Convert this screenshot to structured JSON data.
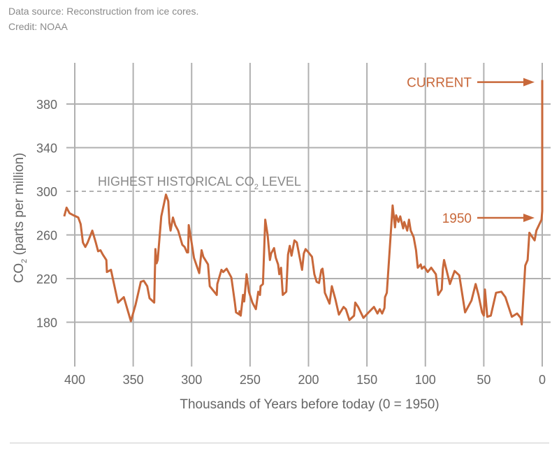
{
  "header": {
    "source": "Data source: Reconstruction from ice cores.",
    "credit": "Credit: NOAA"
  },
  "colors": {
    "line": "#c8683a",
    "grid": "#b0b0b0",
    "text": "#666666",
    "dashed": "#999999"
  },
  "chart_data": {
    "type": "line",
    "title": "",
    "xlabel": "Thousands of Years before today (0 = 1950)",
    "ylabel_main": "CO",
    "ylabel_sub": "2",
    "ylabel_rest": " (parts per million)",
    "xlim": [
      400,
      0
    ],
    "ylim": [
      140,
      418
    ],
    "x_reversed": true,
    "grid": true,
    "xticks": [
      400,
      350,
      300,
      250,
      200,
      150,
      100,
      50,
      0
    ],
    "yticks": [
      180,
      220,
      260,
      300,
      340,
      380
    ],
    "reference_line": {
      "value": 300,
      "label_main": "HIGHEST HISTORICAL CO",
      "label_sub": "2",
      "label_rest": " LEVEL",
      "style": "dashed"
    },
    "annotations": [
      {
        "text": "CURRENT",
        "x": 0,
        "y": 402
      },
      {
        "text": "1950",
        "x": 0,
        "y": 284
      }
    ],
    "series": [
      {
        "x": [
          409,
          407,
          404.5,
          401,
          397,
          395,
          393,
          391,
          389,
          385,
          382,
          380,
          378,
          376,
          373,
          372.5,
          369,
          363,
          358,
          352,
          348,
          343.5,
          341,
          338,
          336,
          332,
          331,
          330,
          329,
          326,
          322,
          320,
          319,
          318,
          316,
          314,
          311.5,
          308,
          306,
          304,
          303,
          302.5,
          300,
          298,
          293.5,
          291.5,
          290,
          286,
          284.5,
          278.5,
          278,
          274.5,
          273,
          270,
          266,
          263,
          262,
          259,
          259,
          258,
          256,
          255,
          253,
          251,
          248,
          245,
          243,
          241.5,
          241,
          239,
          237,
          235,
          233,
          232,
          229.5,
          228,
          226,
          225,
          223.5,
          222,
          219,
          217.5,
          216,
          214.5,
          212,
          210,
          205.5,
          204,
          202.5,
          200,
          197,
          195,
          193,
          191,
          189,
          188,
          187,
          186,
          182,
          180,
          177,
          174,
          170,
          168,
          165,
          161,
          160,
          157.5,
          153,
          148.5,
          144,
          141,
          139,
          137,
          135,
          134.5,
          133,
          128,
          126,
          125,
          123,
          121.5,
          119,
          118,
          115.5,
          114,
          112.5,
          110,
          108,
          106.5,
          104,
          103,
          101,
          98,
          95,
          91,
          89,
          86,
          85,
          84,
          79,
          75,
          71,
          66,
          60.5,
          57,
          54.5,
          51.5,
          50,
          49,
          47,
          44,
          39.5,
          35,
          31.5,
          26,
          21.5,
          18.5,
          17.5,
          14.5,
          12.5,
          11,
          6.5,
          5,
          0.6,
          0,
          0
        ],
        "y": [
          277,
          285,
          280,
          278,
          276,
          270,
          253,
          249,
          253,
          264,
          253,
          245,
          246,
          242,
          237,
          226,
          228,
          198,
          203,
          181,
          196,
          217,
          218,
          213,
          202,
          198,
          247,
          234,
          237,
          277,
          297,
          291,
          271,
          264,
          276,
          269,
          264,
          251,
          249,
          244,
          244,
          269,
          253,
          239,
          225,
          246,
          240,
          233,
          213,
          205,
          215,
          228,
          226,
          229,
          221,
          198,
          189,
          187,
          190,
          186,
          205,
          199,
          224,
          208,
          198,
          192,
          208,
          205,
          213,
          215,
          274,
          260,
          237,
          243,
          248,
          239,
          233,
          224,
          230,
          205,
          208,
          242,
          250,
          241,
          255,
          253,
          228,
          243,
          247,
          244,
          240,
          224,
          217,
          216,
          228,
          229,
          221,
          207,
          197,
          213,
          201,
          187,
          194,
          192,
          182,
          186,
          198,
          194,
          184,
          189,
          194,
          188,
          192,
          188,
          193,
          203,
          207,
          287,
          267,
          278,
          272,
          277,
          266,
          272,
          264,
          274,
          264,
          258,
          246,
          230,
          233,
          229,
          231,
          226,
          230,
          224,
          205,
          210,
          229,
          237,
          215,
          227,
          223,
          189,
          200,
          215,
          205,
          189,
          186,
          210,
          185,
          186,
          207,
          208,
          203,
          185,
          188,
          184,
          178,
          232,
          237,
          262,
          255,
          264,
          274,
          282,
          402
        ]
      }
    ]
  }
}
